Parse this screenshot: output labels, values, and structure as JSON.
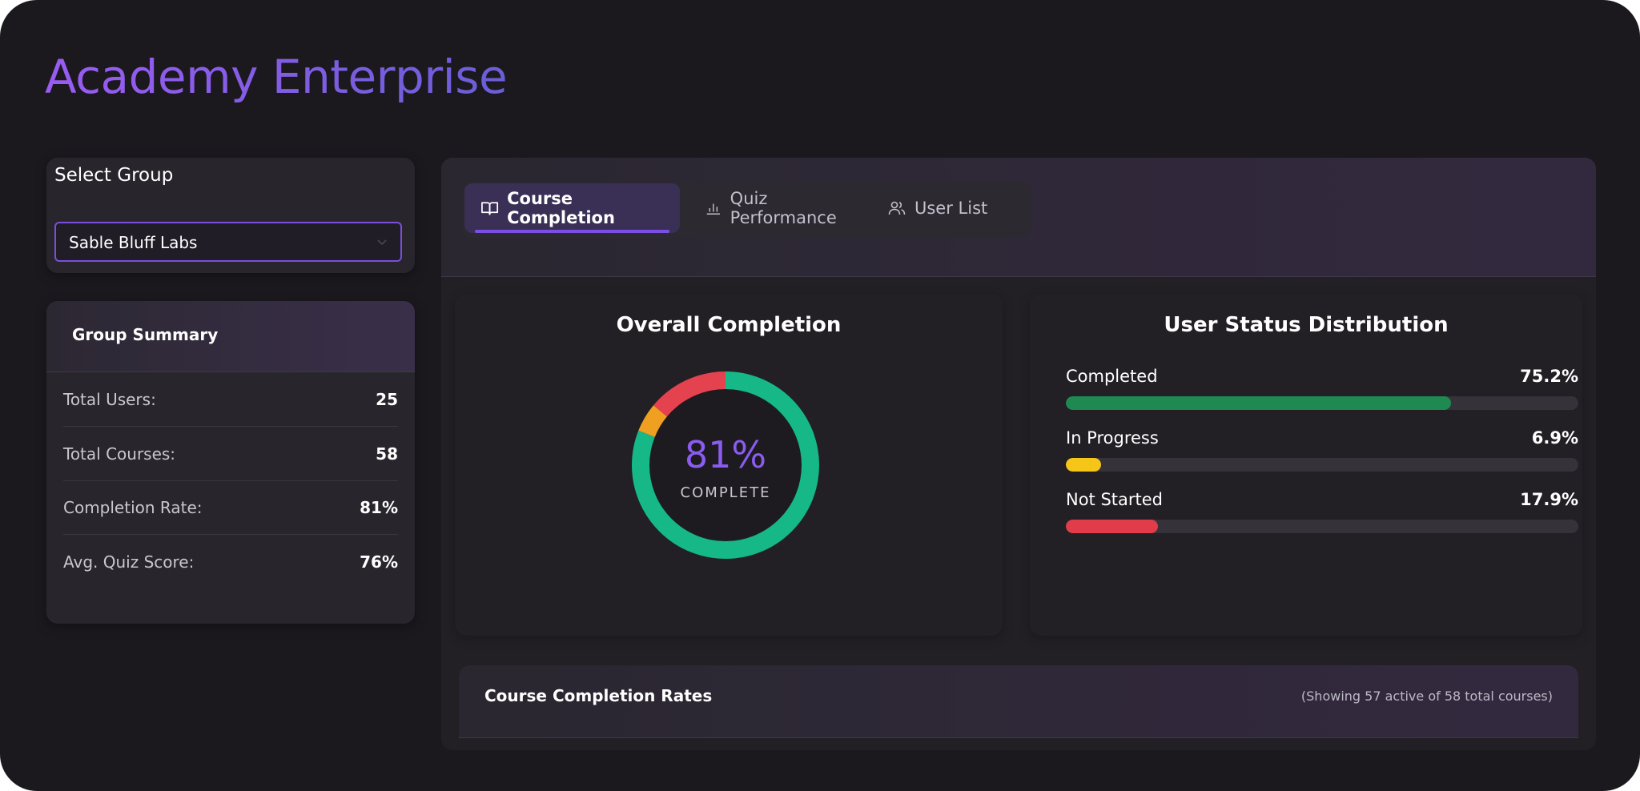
{
  "app": {
    "title": "Academy Enterprise"
  },
  "group_select": {
    "label": "Select Group",
    "selected": "Sable Bluff Labs"
  },
  "summary": {
    "title": "Group Summary",
    "rows": [
      {
        "label": "Total Users:",
        "value": "25"
      },
      {
        "label": "Total Courses:",
        "value": "58"
      },
      {
        "label": "Completion Rate:",
        "value": "81%"
      },
      {
        "label": "Avg. Quiz Score:",
        "value": "76%"
      }
    ]
  },
  "tabs": [
    {
      "label": "Course Completion",
      "icon": "book-open-icon",
      "active": true
    },
    {
      "label": "Quiz Performance",
      "icon": "bar-chart-icon",
      "active": false
    },
    {
      "label": "User List",
      "icon": "users-icon",
      "active": false
    }
  ],
  "overall_completion": {
    "title": "Overall Completion",
    "value_text": "81%",
    "caption": "COMPLETE",
    "segments": [
      {
        "name": "Completed",
        "fraction": 0.81,
        "color": "#15b886"
      },
      {
        "name": "In Progress",
        "fraction": 0.05,
        "color": "#f0a020"
      },
      {
        "name": "Not Started",
        "fraction": 0.14,
        "color": "#e5424f"
      }
    ]
  },
  "status_distribution": {
    "title": "User Status Distribution",
    "items": [
      {
        "label": "Completed",
        "value_text": "75.2%",
        "fraction": 0.752,
        "color": "#1e8a52"
      },
      {
        "label": "In Progress",
        "value_text": "6.9%",
        "fraction": 0.069,
        "color": "#f5c518"
      },
      {
        "label": "Not Started",
        "value_text": "17.9%",
        "fraction": 0.179,
        "color": "#e03c4a"
      }
    ]
  },
  "course_rates": {
    "title": "Course Completion Rates",
    "note": "(Showing 57 active of 58 total courses)"
  },
  "colors": {
    "accent": "#7b4fe6",
    "background": "#1b191e",
    "card": "#28262c"
  }
}
